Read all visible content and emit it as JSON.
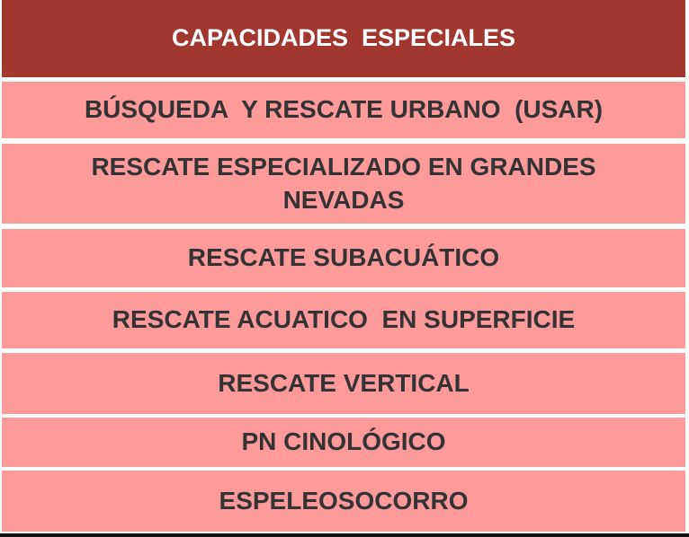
{
  "table": {
    "header": "CAPACIDADES  ESPECIALES",
    "rows": [
      "BÚSQUEDA  Y RESCATE URBANO  (USAR)",
      "RESCATE ESPECIALIZADO  EN GRANDES NEVADAS",
      "RESCATE SUBACUÁTICO",
      "RESCATE ACUATICO  EN SUPERFICIE",
      "RESCATE VERTICAL",
      "PN CINOLÓGICO",
      "ESPELEOSOCORRO"
    ]
  },
  "colors": {
    "header_bg": "#a2372f",
    "row_bg": "#fe9a99",
    "text": "#333333"
  }
}
